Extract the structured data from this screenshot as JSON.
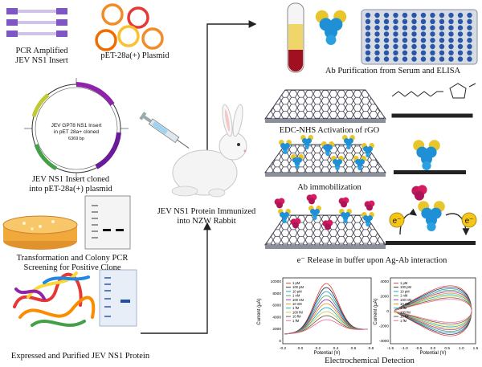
{
  "labels": {
    "pcr_insert": [
      "PCR Amplified",
      "JEV NS1 Insert"
    ],
    "plasmid": "pET-28a(+) Plasmid",
    "cloned": [
      "JEV NS1 Insert cloned",
      "into pET-28a(+) plasmid"
    ],
    "transformation": [
      "Transformation and Colony PCR",
      "Screening for Positive Clone"
    ],
    "expressed": "Expressed and Purified JEV NS1 Protein",
    "immunized": [
      "JEV NS1 Protein Immunized",
      "into NZW Rabbit"
    ],
    "ab_purification": "Ab Purification from Serum and ELISA",
    "edc_nhs": "EDC-NHS Activation of rGO",
    "ab_immobilization": "Ab immobilization",
    "electron_release": "e⁻ Release in buffer upon Ag-Ab interaction",
    "electrochemical": "Electrochemical Detection"
  },
  "plasmid_map": {
    "center_title": [
      "JEV GP78 NS1 Insert",
      "in pET 28a+ cloned"
    ],
    "center_size": "6369 bp"
  },
  "electron_symbol": "e⁻",
  "graph_left": {
    "ylabel": "Current (μA)",
    "xlabel": "Potential (V)",
    "yticks": [
      "10000",
      "8000",
      "6000",
      "4000",
      "2000",
      "0"
    ],
    "xticks": [
      "-0.2",
      "0.0",
      "0.2",
      "0.4",
      "0.6",
      "0.8"
    ],
    "legend": [
      "1 pM",
      "100 pM",
      "10 pM",
      "1 nM",
      "100 nM",
      "10 nM",
      "1 fM",
      "100 fM",
      "10 fM",
      "1 fM"
    ]
  },
  "graph_right": {
    "ylabel": "Current (μA)",
    "xlabel": "Potential (V)",
    "yticks": [
      "4000",
      "2000",
      "0",
      "-2000",
      "-4000"
    ],
    "xticks": [
      "-1.5",
      "-1.0",
      "-0.5",
      "0.0",
      "0.5",
      "1.0",
      "1.5"
    ],
    "legend": [
      "1 μM",
      "100 pM",
      "10 pM",
      "1 nM",
      "100 nM",
      "10 nM",
      "1 fM",
      "100 fM",
      "10 fM",
      "1 fM"
    ]
  },
  "colors": {
    "arrow": "#222222",
    "rgo": "#3a3a4a",
    "antibody_blue": "#1f8fd6",
    "antibody_yellow": "#e8c52a",
    "antigen_red": "#c2185b",
    "elisa_well": "#2a56a8",
    "serum_yellow": "#f0d56a",
    "serum_red": "#a01020"
  },
  "chart_data": [
    {
      "type": "line",
      "ylabel": "Current (μA)",
      "xlabel": "Potential (V)",
      "ylim": [
        0,
        10000
      ],
      "xlim": [
        -0.2,
        0.8
      ],
      "legend": [
        "1 pM",
        "100 pM",
        "10 pM",
        "1 nM",
        "100 nM",
        "10 nM",
        "1 fM",
        "100 fM",
        "10 fM",
        "1 fM"
      ]
    },
    {
      "type": "line",
      "ylabel": "Current (μA)",
      "xlabel": "Potential (V)",
      "ylim": [
        -4000,
        4000
      ],
      "xlim": [
        -1.5,
        1.5
      ],
      "legend": [
        "1 μM",
        "100 pM",
        "10 pM",
        "1 nM",
        "100 nM",
        "10 nM",
        "1 fM",
        "100 fM",
        "10 fM",
        "1 fM"
      ]
    }
  ]
}
